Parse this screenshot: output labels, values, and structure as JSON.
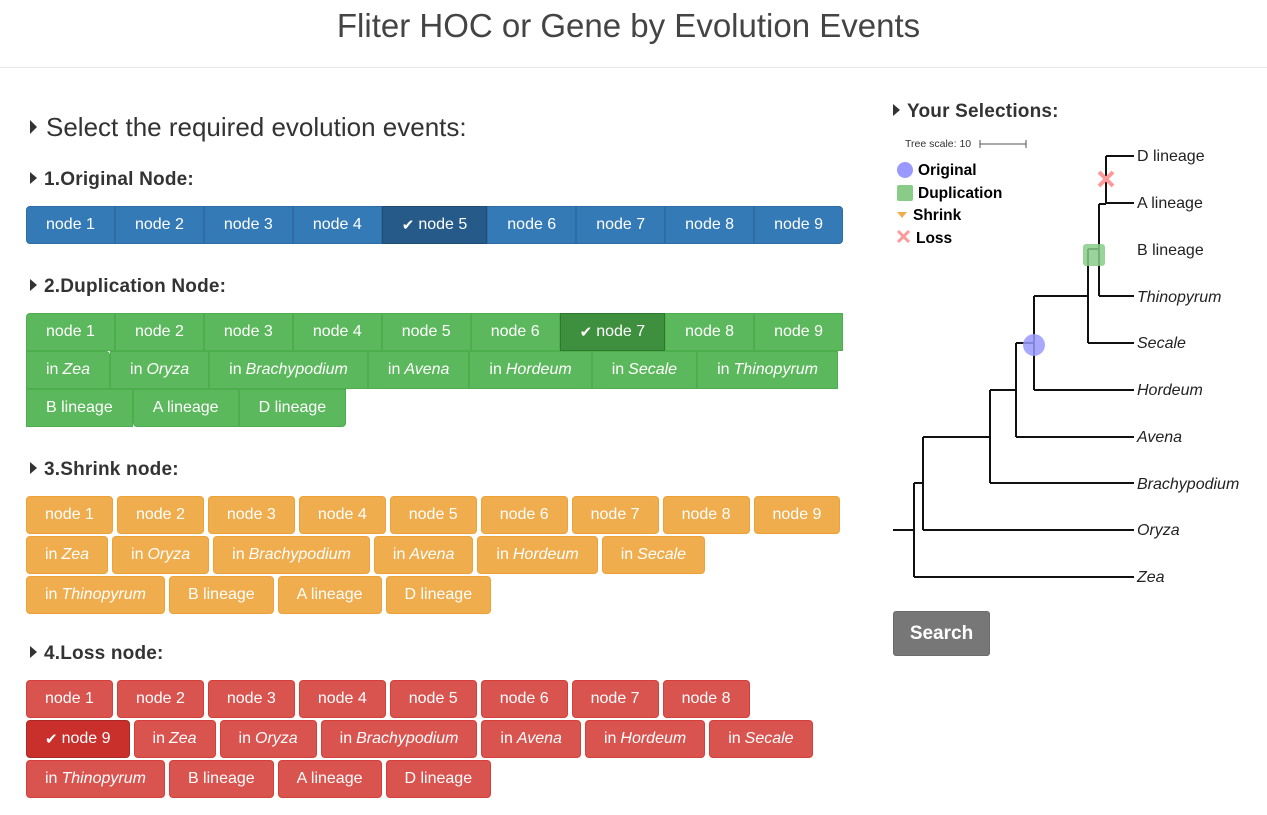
{
  "header": {
    "title": "Fliter HOC or Gene by Evolution Events"
  },
  "main_heading": "Select the required evolution events:",
  "sections": {
    "original": {
      "heading": "1.Original Node:",
      "buttons": [
        "node 1",
        "node 2",
        "node 3",
        "node 4",
        "node 5",
        "node 6",
        "node 7",
        "node 8",
        "node 9"
      ],
      "selected": "node 5"
    },
    "duplication": {
      "heading": "2.Duplication Node:",
      "buttons": [
        "node 1",
        "node 2",
        "node 3",
        "node 4",
        "node 5",
        "node 6",
        "node 7",
        "node 8",
        "node 9",
        "Zea",
        "Oryza",
        "Brachypodium",
        "Avena",
        "Hordeum",
        "Secale",
        "Thinopyrum",
        "B lineage",
        "A lineage",
        "D lineage"
      ],
      "in_prefix": "in",
      "selected": "node 7"
    },
    "shrink": {
      "heading": "3.Shrink node:",
      "buttons": [
        "node 1",
        "node 2",
        "node 3",
        "node 4",
        "node 5",
        "node 6",
        "node 7",
        "node 8",
        "node 9",
        "Zea",
        "Oryza",
        "Brachypodium",
        "Avena",
        "Hordeum",
        "Secale",
        "Thinopyrum",
        "B lineage",
        "A lineage",
        "D lineage"
      ],
      "in_prefix": "in"
    },
    "loss": {
      "heading": "4.Loss node:",
      "buttons": [
        "node 1",
        "node 2",
        "node 3",
        "node 4",
        "node 5",
        "node 6",
        "node 7",
        "node 8",
        "node 9",
        "Zea",
        "Oryza",
        "Brachypodium",
        "Avena",
        "Hordeum",
        "Secale",
        "Thinopyrum",
        "B lineage",
        "A lineage",
        "D lineage"
      ],
      "in_prefix": "in",
      "selected": "node 9"
    }
  },
  "selections": {
    "heading": "Your Selections:",
    "tree_scale": "Tree scale: 10",
    "legend": {
      "original": "Original",
      "duplication": "Duplication",
      "shrink": "Shrink",
      "loss": "Loss"
    },
    "leaves": {
      "d": "D lineage",
      "a": "A lineage",
      "b": "B lineage",
      "thinopyrum": "Thinopyrum",
      "secale": "Secale",
      "hordeum": "Hordeum",
      "avena": "Avena",
      "brachypodium": "Brachypodium",
      "oryza": "Oryza",
      "zea": "Zea"
    },
    "colors": {
      "original": "#9999ff",
      "duplication": "#88cc88",
      "shrink": "#f0ad4e",
      "loss": "#ff9999"
    }
  },
  "search_button": "Search",
  "colors": {
    "primary": "#337ab7",
    "success": "#5cb85c",
    "warning": "#f0ad4e",
    "danger": "#d9534f",
    "default_dark": "#777777"
  }
}
